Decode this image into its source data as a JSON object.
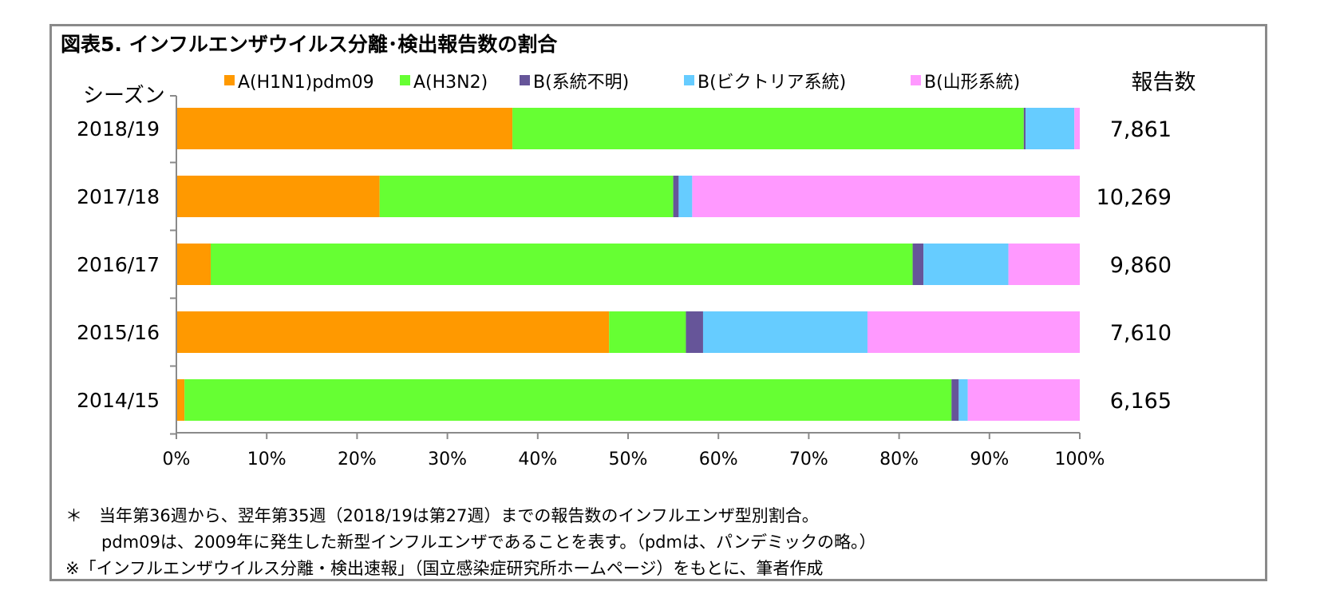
{
  "title": "図表5. インフルエンザウイルス分離･検出報告数の割合",
  "notes": {
    "line1": "＊　当年第36週から、翌年第35週（2018/19は第27週）までの報告数のインフルエンザ型別割合。",
    "line2": "pdm09は、2009年に発生した新型インフルエンザであることを表す。（pdmは、パンデミックの略。）",
    "line3": "※「インフルエンザウイルス分離・検出速報」（国立感染症研究所ホームページ）をもとに、筆者作成"
  },
  "chart_data": {
    "type": "bar",
    "orientation": "horizontal",
    "stacked": "percent",
    "category_axis_label": "シーズン",
    "right_column_header": "報告数",
    "categories": [
      "2018/19",
      "2017/18",
      "2016/17",
      "2015/16",
      "2014/15"
    ],
    "report_counts": [
      "7,861",
      "10,269",
      "9,860",
      "7,610",
      "6,165"
    ],
    "series": [
      {
        "name": "A(H1N1)pdm09",
        "color": "#FF9900",
        "values": [
          37.2,
          22.5,
          3.8,
          47.9,
          0.9
        ]
      },
      {
        "name": "A(H3N2)",
        "color": "#66FF33",
        "values": [
          56.6,
          32.5,
          77.7,
          8.5,
          84.9
        ]
      },
      {
        "name": "B(系統不明)",
        "color": "#665599",
        "values": [
          0.2,
          0.6,
          1.2,
          1.9,
          0.8
        ]
      },
      {
        "name": "B(ビクトリア系統)",
        "color": "#66CCFF",
        "values": [
          5.4,
          1.5,
          9.4,
          18.2,
          1.0
        ]
      },
      {
        "name": "B(山形系統)",
        "color": "#FF99FF",
        "values": [
          0.6,
          42.9,
          7.9,
          23.5,
          12.4
        ]
      }
    ],
    "xlim": [
      0,
      100
    ],
    "x_ticks": [
      "0%",
      "10%",
      "20%",
      "30%",
      "40%",
      "50%",
      "60%",
      "70%",
      "80%",
      "90%",
      "100%"
    ],
    "legend_position": "top",
    "grid": false
  }
}
